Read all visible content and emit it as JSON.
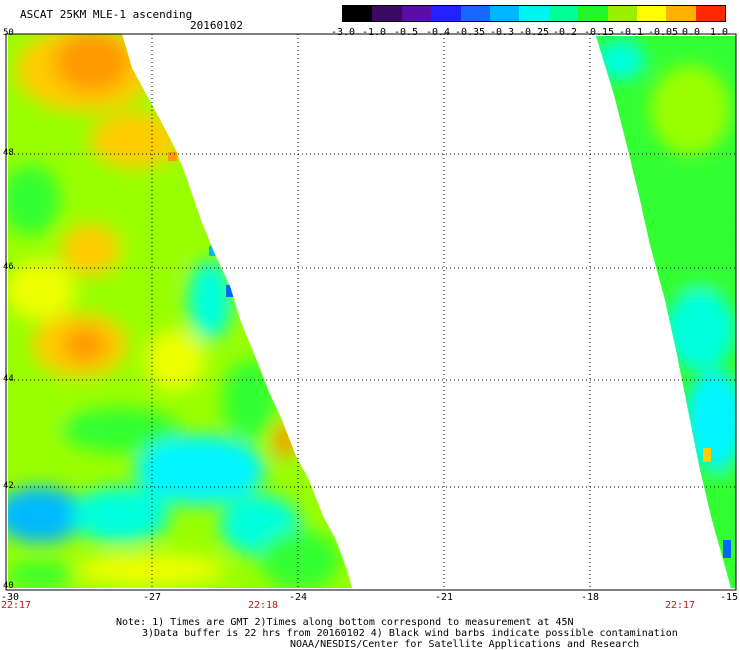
{
  "header": {
    "title": "ASCAT 25KM MLE-1 ascending",
    "date": "20160102"
  },
  "colorbar": {
    "labels": [
      "-3.0",
      "-1.0",
      "-0.5",
      "-0.4",
      "-0.35",
      "-0.3",
      "-0.25",
      "-0.2",
      "-0.15",
      "-0.1",
      "-0.05",
      "0.0",
      "1.0"
    ],
    "colors": [
      "#000000",
      "#3a0a63",
      "#5b0ea6",
      "#2222ff",
      "#1a66ff",
      "#00b7ff",
      "#00f5f0",
      "#00ff99",
      "#22f52a",
      "#99ee00",
      "#ffff00",
      "#ffb000",
      "#ff2a00"
    ]
  },
  "axes": {
    "lat_labels": [
      "50",
      "48",
      "46",
      "44",
      "42",
      "40"
    ],
    "lon_labels": [
      "-30",
      "-27",
      "-24",
      "-21",
      "-18",
      "-15"
    ],
    "times": [
      "22:17",
      "22:18",
      "22:17"
    ]
  },
  "notes": {
    "line1": "Note: 1) Times are GMT 2)Times along bottom correspond to measurement at 45N",
    "line2": "3)Data buffer is 22 hrs from 20160102 4) Black wind barbs indicate possible contamination",
    "line3": "NOAA/NESDIS/Center for Satellite Applications and Research"
  },
  "palette": {
    "orange": "#ff9a00",
    "yellow_orange": "#ffcc00",
    "yellow": "#eeff00",
    "lime": "#99ff00",
    "green": "#33ff33",
    "aqua": "#00ffdd",
    "cyan": "#00f5ff",
    "blue_cyan": "#00b8ff",
    "blue": "#0066ff"
  }
}
